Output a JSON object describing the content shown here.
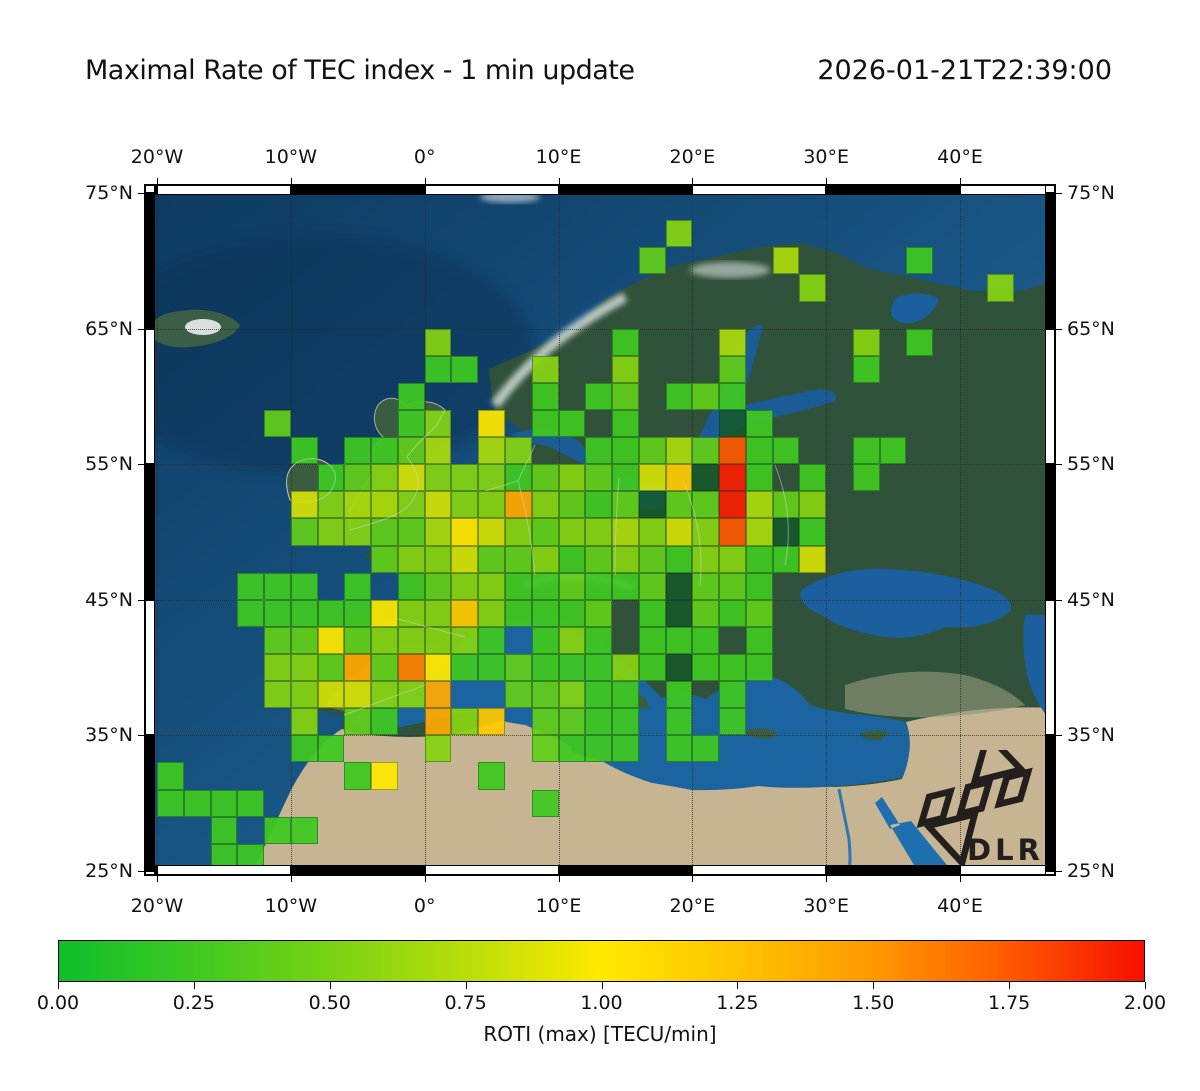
{
  "header": {
    "title": "Maximal Rate of TEC index - 1 min update",
    "timestamp": "2026-01-21T22:39:00"
  },
  "axes": {
    "lon_ticks": [
      {
        "deg": -20,
        "label": "20°W"
      },
      {
        "deg": -10,
        "label": "10°W"
      },
      {
        "deg": 0,
        "label": "0°"
      },
      {
        "deg": 10,
        "label": "10°E"
      },
      {
        "deg": 20,
        "label": "20°E"
      },
      {
        "deg": 30,
        "label": "30°E"
      },
      {
        "deg": 40,
        "label": "40°E"
      }
    ],
    "lat_ticks": [
      {
        "deg": 75,
        "label": "75°N"
      },
      {
        "deg": 65,
        "label": "65°N"
      },
      {
        "deg": 55,
        "label": "55°N"
      },
      {
        "deg": 45,
        "label": "45°N"
      },
      {
        "deg": 35,
        "label": "35°N"
      },
      {
        "deg": 25,
        "label": "25°N"
      }
    ]
  },
  "map_extent": {
    "lon_min": -20.9,
    "lon_max": 47.1,
    "lat_min": 24.7,
    "lat_max": 75.6
  },
  "logo": {
    "text": "DLR"
  },
  "colorbar": {
    "label": "ROTI (max) [TECU/min]",
    "tick_labels": [
      "0.00",
      "0.25",
      "0.50",
      "0.75",
      "1.00",
      "1.25",
      "1.50",
      "1.75",
      "2.00"
    ],
    "min": 0,
    "max": 2
  },
  "chart_data": {
    "type": "heatmap",
    "title": "Maximal Rate of TEC index - 1 min update",
    "timestamp": "2026-01-21T22:39:00",
    "value_name": "ROTI (max)",
    "value_units": "TECU/min",
    "value_range": [
      0,
      2
    ],
    "legend_position": "bottom",
    "grid_on": true,
    "colormap_anchors": [
      [
        0.0,
        "#0fbe2c"
      ],
      [
        0.25,
        "#3fc922"
      ],
      [
        0.5,
        "#79d214"
      ],
      [
        0.75,
        "#b8de0a"
      ],
      [
        1.0,
        "#ffe900"
      ],
      [
        1.25,
        "#ffc300"
      ],
      [
        1.5,
        "#ff9900"
      ],
      [
        1.75,
        "#ff5a00"
      ],
      [
        2.0,
        "#f70f00"
      ]
    ],
    "grid": {
      "comment": "2x2 degree cells. Rows top-to-bottom, row j covers lat (73-2j)..(75-2j)? top row = 71..73N; columns left-to-right, col i covers lon (-20+2i)..(-18+2i). '.'=no data",
      "lon_start": -20,
      "lat_top_start": 73,
      "cell_deg": 2,
      "encoding": {
        ".": null,
        "a": 0.05,
        "b": 0.25,
        "c": 0.4,
        "d": 0.55,
        "e": 0.7,
        "f": 0.85,
        "g": 1.0,
        "h": 1.2,
        "i": 1.4,
        "j": 1.6,
        "k": 1.75,
        "l": 1.95
      },
      "dark_cell_char": "a",
      "dark_cell_color": "#145a28",
      "rows": [
        "...................d.............",
        "..................c....e....b....",
        "........................d......d.",
        ".................................",
        "..........d......b...e....d.b....",
        "..........bb..d..d...c....b......",
        ".........b....b.bc.bcb...........",
        "....c....bd.g.bb.b...ab..........",
        ".....b.bbce.ed..bbceckbb..bb.....",
        "......bcdfdddbcdcbfhalb.b.b......",
        ".....fdeedfddidcbcacclecd........",
        ".....cddccegfdcddedfdkeab........",
        "........cddfccdbcdcbddbbf........",
        "...bbb.b.bcddbbcbbcaccb..........",
        "...bbbbbgddhdbbbc.bacbc..........",
        "....ccgcddddb.bdb.bbb.b..........",
        "....ddcicjgbbcbbbdbabbb..........",
        "....ddffddi..ccdbb.b.b...........",
        ".....d.cb.idh.ccbb.b.b...........",
        ".....bb...d...cbbb.bb............",
        "b......bg...b....................",
        "bbbb..........b..................",
        "..b.bb...........................",
        "..bb............................."
      ]
    }
  }
}
